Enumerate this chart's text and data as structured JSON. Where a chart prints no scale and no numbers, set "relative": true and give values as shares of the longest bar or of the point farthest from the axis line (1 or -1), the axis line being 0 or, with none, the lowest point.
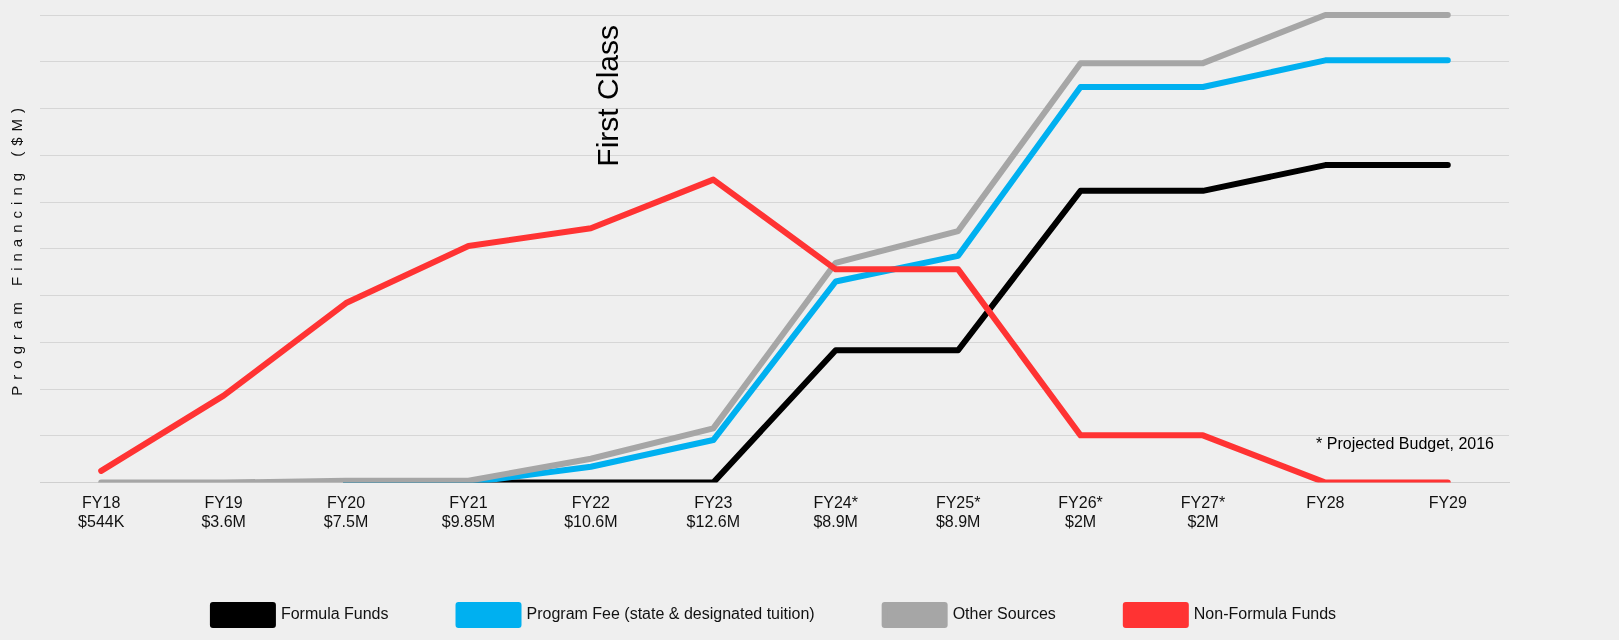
{
  "chart_data": {
    "type": "line",
    "relative": true,
    "ylabel": "Program Financing ($M)",
    "categories": [
      "FY18\n$544K",
      "FY19\n$3.6M",
      "FY20\n$7.5M",
      "FY21\n$9.85M",
      "FY22\n$10.6M",
      "FY23\n$12.6M",
      "FY24*\n$8.9M",
      "FY25*\n$8.9M",
      "FY26*\n$2M",
      "FY27*\n$2M",
      "FY28",
      "FY29"
    ],
    "series": [
      {
        "name": "Formula Funds",
        "color": "#000000",
        "values": [
          null,
          null,
          0,
          0,
          0,
          0,
          0.283,
          0.283,
          0.624,
          0.624,
          0.679,
          0.679
        ]
      },
      {
        "name": "Program Fee (state & designated tuition)",
        "color": "#00b0f0",
        "values": [
          null,
          null,
          0,
          0,
          0.034,
          0.091,
          0.43,
          0.485,
          0.846,
          0.846,
          0.903,
          0.903
        ]
      },
      {
        "name": "Other Sources",
        "color": "#a6a6a6",
        "values": [
          0,
          0,
          0.004,
          0.004,
          0.051,
          0.116,
          0.47,
          0.538,
          0.897,
          0.897,
          1,
          1
        ]
      },
      {
        "name": "Non-Formula Funds",
        "color": "#ff3333",
        "values": [
          0.025,
          0.186,
          0.384,
          0.506,
          0.544,
          0.648,
          0.456,
          0.456,
          0.101,
          0.101,
          0,
          0
        ]
      }
    ],
    "annotations": [
      "First Class",
      "* Projected Budget, 2016"
    ],
    "grid": "y",
    "legend": "bottom",
    "marker": "none",
    "line_style": "solid"
  }
}
